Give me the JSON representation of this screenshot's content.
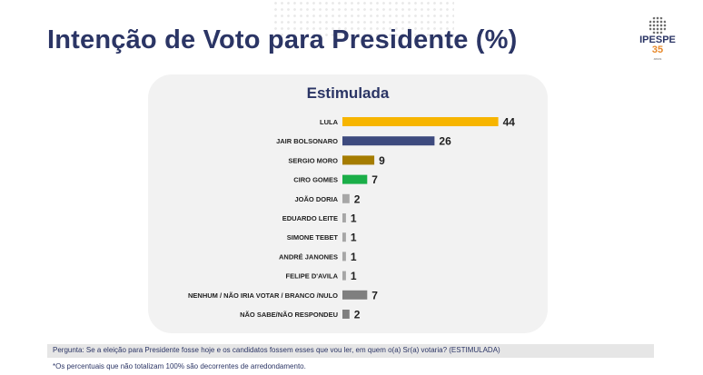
{
  "page": {
    "title": "Intenção de Voto para Presidente (%)",
    "question": "Pergunta:  Se a eleição para Presidente fosse hoje e os candidatos fossem esses que vou ler, em quem o(a) Sr(a) votaria? (ESTIMULADA)",
    "note": "*Os percentuais que não totalizam 100% são decorrentes de arredondamento."
  },
  "logo": {
    "name": "IPESPE",
    "number": "35",
    "sub": "anos"
  },
  "chart_data": {
    "type": "bar",
    "orientation": "horizontal",
    "title": "Estimulada",
    "categories": [
      "LULA",
      "JAIR BOLSONARO",
      "SERGIO MORO",
      "CIRO GOMES",
      "JOÃO DORIA",
      "EDUARDO LEITE",
      "SIMONE TEBET",
      "ANDRÉ JANONES",
      "FELIPE D'AVILA",
      "NENHUM / NÃO IRIA VOTAR / BRANCO /NULO",
      "NÃO SABE/NÃO RESPONDEU"
    ],
    "values": [
      44,
      26,
      9,
      7,
      2,
      1,
      1,
      1,
      1,
      7,
      2
    ],
    "colors": [
      "#f7b500",
      "#3d4a7e",
      "#a57c00",
      "#1aae48",
      "#a6a6a6",
      "#a6a6a6",
      "#a6a6a6",
      "#a6a6a6",
      "#a6a6a6",
      "#7f7f7f",
      "#7f7f7f"
    ],
    "data_labels": true,
    "axis": false,
    "grid": false,
    "legend": "none"
  }
}
